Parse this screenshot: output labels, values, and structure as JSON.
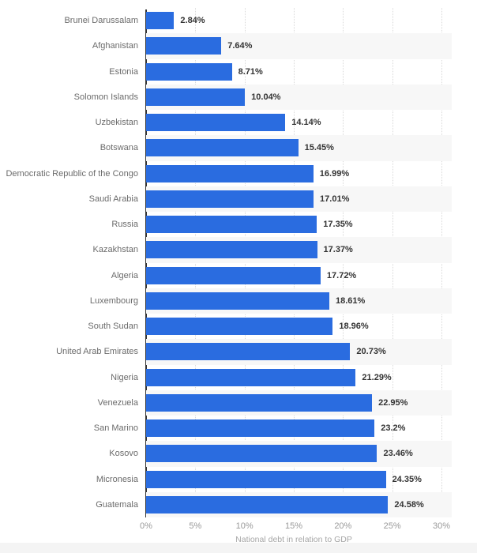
{
  "chart_data": {
    "type": "bar",
    "orientation": "horizontal",
    "title": "",
    "xlabel": "National debt in relation to GDP",
    "ylabel": "",
    "xlim": [
      0,
      30
    ],
    "tick_values": [
      0,
      5,
      10,
      15,
      20,
      25,
      30
    ],
    "tick_labels": [
      "0%",
      "5%",
      "10%",
      "15%",
      "20%",
      "25%",
      "30%"
    ],
    "grid": "vertical-dotted",
    "legend": "none",
    "row_striping": "alternating",
    "categories": [
      "Brunei Darussalam",
      "Afghanistan",
      "Estonia",
      "Solomon Islands",
      "Uzbekistan",
      "Botswana",
      "Democratic Republic of the Congo",
      "Saudi Arabia",
      "Russia",
      "Kazakhstan",
      "Algeria",
      "Luxembourg",
      "South Sudan",
      "United Arab Emirates",
      "Nigeria",
      "Venezuela",
      "San Marino",
      "Kosovo",
      "Micronesia",
      "Guatemala"
    ],
    "values": [
      2.84,
      7.64,
      8.71,
      10.04,
      14.14,
      15.45,
      16.99,
      17.01,
      17.35,
      17.37,
      17.72,
      18.61,
      18.96,
      20.73,
      21.29,
      22.95,
      23.2,
      23.46,
      24.35,
      24.58
    ],
    "value_labels": [
      "2.84%",
      "7.64%",
      "8.71%",
      "10.04%",
      "14.14%",
      "15.45%",
      "16.99%",
      "17.01%",
      "17.35%",
      "17.37%",
      "17.72%",
      "18.61%",
      "18.96%",
      "20.73%",
      "21.29%",
      "22.95%",
      "23.2%",
      "23.46%",
      "24.35%",
      "24.58%"
    ]
  },
  "colors": {
    "bar": "#2a6ce0",
    "row_stripe": "#f7f7f7",
    "gridline": "#d9d9d9",
    "axis_line": "#333333",
    "category_label": "#6b6b6b",
    "value_label": "#333333",
    "tick_label": "#999999",
    "axis_title": "#a6a6a6",
    "footer_strip": "#f4f4f4",
    "background": "#ffffff"
  }
}
